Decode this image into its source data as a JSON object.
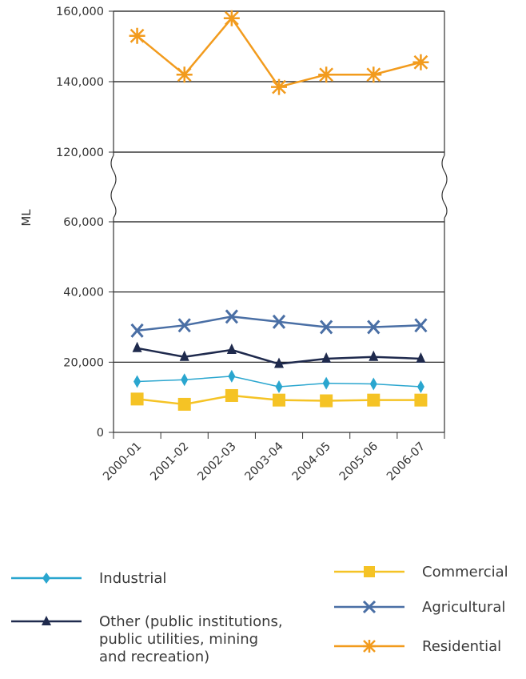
{
  "chart_data": {
    "type": "line",
    "ylabel": "ML",
    "xlabel": "",
    "categories": [
      "2000-01",
      "2001-02",
      "2002-03",
      "2003-04",
      "2004-05",
      "2005-06",
      "2006-07"
    ],
    "y_axis_break": [
      120000,
      60000
    ],
    "y_ticks": [
      {
        "value": 0,
        "label": "0"
      },
      {
        "value": 20000,
        "label": "20,000"
      },
      {
        "value": 40000,
        "label": "40,000"
      },
      {
        "value": 60000,
        "label": "60,000"
      },
      {
        "value": 120000,
        "label": "120,000"
      },
      {
        "value": 140000,
        "label": "140,000"
      },
      {
        "value": 160000,
        "label": "160,000"
      }
    ],
    "grid": "horizontal",
    "series": [
      {
        "name": "Residential",
        "color": "#f29b1d",
        "marker": "asterisk",
        "values": [
          153000,
          142000,
          158000,
          138500,
          142000,
          142000,
          145500
        ]
      },
      {
        "name": "Agricultural",
        "color": "#4a6fa5",
        "marker": "x",
        "values": [
          29000,
          30500,
          33000,
          31500,
          30000,
          30000,
          30500
        ]
      },
      {
        "name": "Other (public institutions, public utilities, mining and recreation)",
        "color": "#1f2a4d",
        "marker": "triangle",
        "values": [
          24000,
          21500,
          23500,
          19500,
          21000,
          21500,
          21000
        ]
      },
      {
        "name": "Industrial",
        "color": "#2aa6cf",
        "marker": "diamond",
        "values": [
          14500,
          15000,
          16000,
          13000,
          14000,
          13800,
          13000
        ]
      },
      {
        "name": "Commercial",
        "color": "#f5c325",
        "marker": "square",
        "values": [
          9500,
          8000,
          10500,
          9200,
          9000,
          9200,
          9200
        ]
      }
    ]
  },
  "legend": {
    "industrial": "Industrial",
    "other_line1": "Other (public institutions,",
    "other_line2": "public utilities, mining",
    "other_line3": "and recreation)",
    "commercial": "Commercial",
    "agricultural": "Agricultural",
    "residential": "Residential"
  }
}
